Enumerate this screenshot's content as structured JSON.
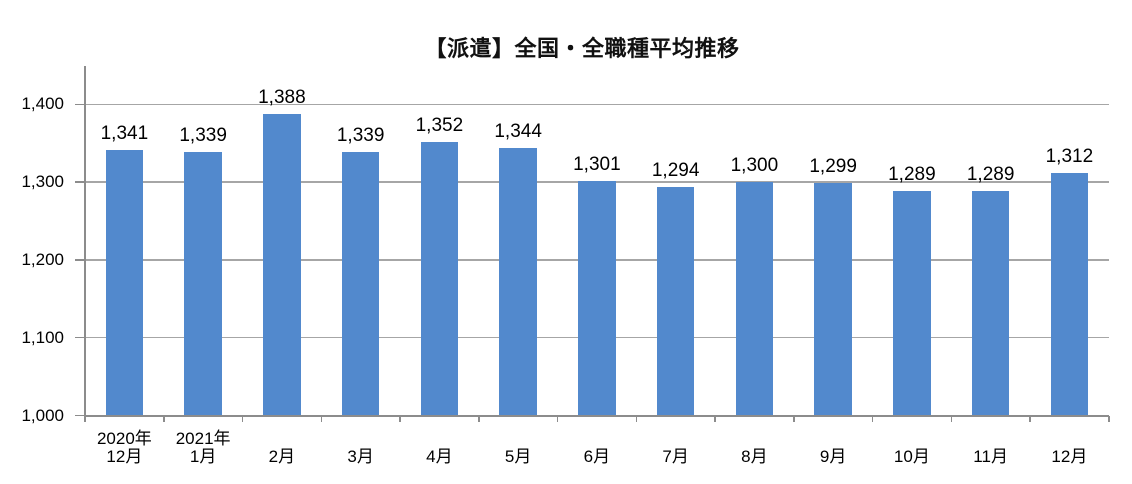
{
  "chart_data": {
    "type": "bar",
    "title": "【派遣】全国・全職種平均推移",
    "categories": [
      [
        "2020年",
        "12月"
      ],
      [
        "2021年",
        "1月"
      ],
      [
        "2月"
      ],
      [
        "3月"
      ],
      [
        "4月"
      ],
      [
        "5月"
      ],
      [
        "6月"
      ],
      [
        "7月"
      ],
      [
        "8月"
      ],
      [
        "9月"
      ],
      [
        "10月"
      ],
      [
        "11月"
      ],
      [
        "12月"
      ]
    ],
    "values": [
      1341,
      1339,
      1388,
      1339,
      1352,
      1344,
      1301,
      1294,
      1300,
      1299,
      1289,
      1289,
      1312
    ],
    "value_labels": [
      "1,341",
      "1,339",
      "1,388",
      "1,339",
      "1,352",
      "1,344",
      "1,301",
      "1,294",
      "1,300",
      "1,299",
      "1,289",
      "1,289",
      "1,312"
    ],
    "ylim": [
      1000,
      1450
    ],
    "yticks": [
      1000,
      1100,
      1200,
      1300,
      1400
    ],
    "ytick_labels": [
      "1,000",
      "1,100",
      "1,200",
      "1,300",
      "1,400"
    ],
    "xlabel": "",
    "ylabel": "",
    "grid": true,
    "legend": "none",
    "bar_color": "#5289CD",
    "gridline_color": "#A6A6A6",
    "axis_color": "#8C8C8C",
    "label_color": "#000000"
  }
}
